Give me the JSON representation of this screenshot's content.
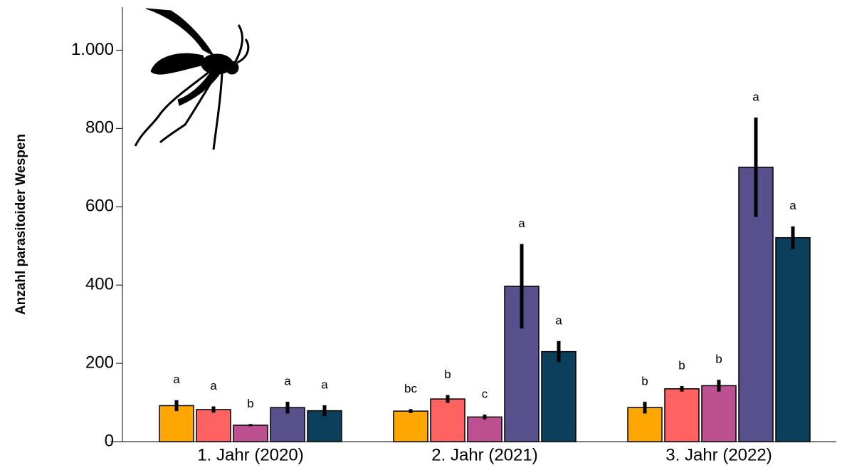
{
  "chart_data": {
    "type": "bar",
    "ylabel": "Anzahl parasitoider Wespen",
    "categories": [
      "1. Jahr (2020)",
      "2. Jahr (2021)",
      "3. Jahr (2022)"
    ],
    "ylim": [
      0,
      1110
    ],
    "yticks": [
      0,
      200,
      400,
      600,
      800,
      {
        "value": 1000,
        "label": "1.000"
      }
    ],
    "series": [
      {
        "color": "#ffa600",
        "values": [
          92,
          78,
          87
        ],
        "errors": [
          14,
          5,
          15
        ],
        "letters": [
          "a",
          "bc",
          "b"
        ]
      },
      {
        "color": "#ff6361",
        "values": [
          82,
          109,
          135
        ],
        "errors": [
          8,
          10,
          7
        ],
        "letters": [
          "a",
          "b",
          "b"
        ]
      },
      {
        "color": "#bc5090",
        "values": [
          42,
          63,
          143
        ],
        "errors": [
          3,
          6,
          15
        ],
        "letters": [
          "b",
          "c",
          "b"
        ]
      },
      {
        "color": "#58508d",
        "values": [
          87,
          397,
          701
        ],
        "errors": [
          15,
          108,
          127
        ],
        "letters": [
          "a",
          "a",
          "a"
        ]
      },
      {
        "color": "#0b3f5c",
        "values": [
          79,
          230,
          521
        ],
        "errors": [
          14,
          27,
          29
        ],
        "letters": [
          "a",
          "a",
          "a"
        ]
      }
    ]
  }
}
